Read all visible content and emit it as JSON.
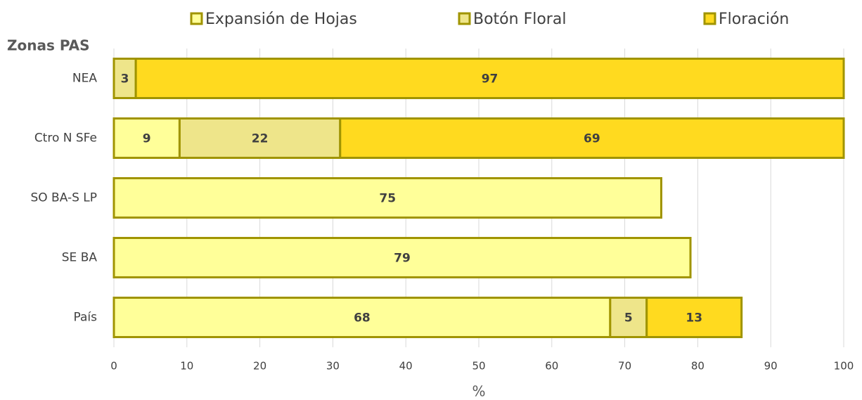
{
  "chart_data": {
    "type": "stacked_barh",
    "y_axis_title": "Zonas PAS",
    "x_axis_label": "%",
    "categories": [
      "NEA",
      "Ctro N SFe",
      "SO BA-S LP",
      "SE BA",
      "País"
    ],
    "series": [
      {
        "name": "Expansión de Hojas",
        "color": "#FFFF99",
        "values": [
          null,
          9,
          75,
          79,
          68
        ]
      },
      {
        "name": "Botón Floral",
        "color": "#EEE58A",
        "values": [
          3,
          22,
          null,
          null,
          5
        ]
      },
      {
        "name": "Floración",
        "color": "#FFDA1F",
        "values": [
          97,
          69,
          null,
          null,
          13
        ]
      }
    ],
    "edge_color": "#A09400",
    "xlim": [
      0,
      100
    ],
    "xticks": [
      0,
      10,
      20,
      30,
      40,
      50,
      60,
      70,
      80,
      90,
      100
    ],
    "grid": true,
    "legend": "top"
  }
}
